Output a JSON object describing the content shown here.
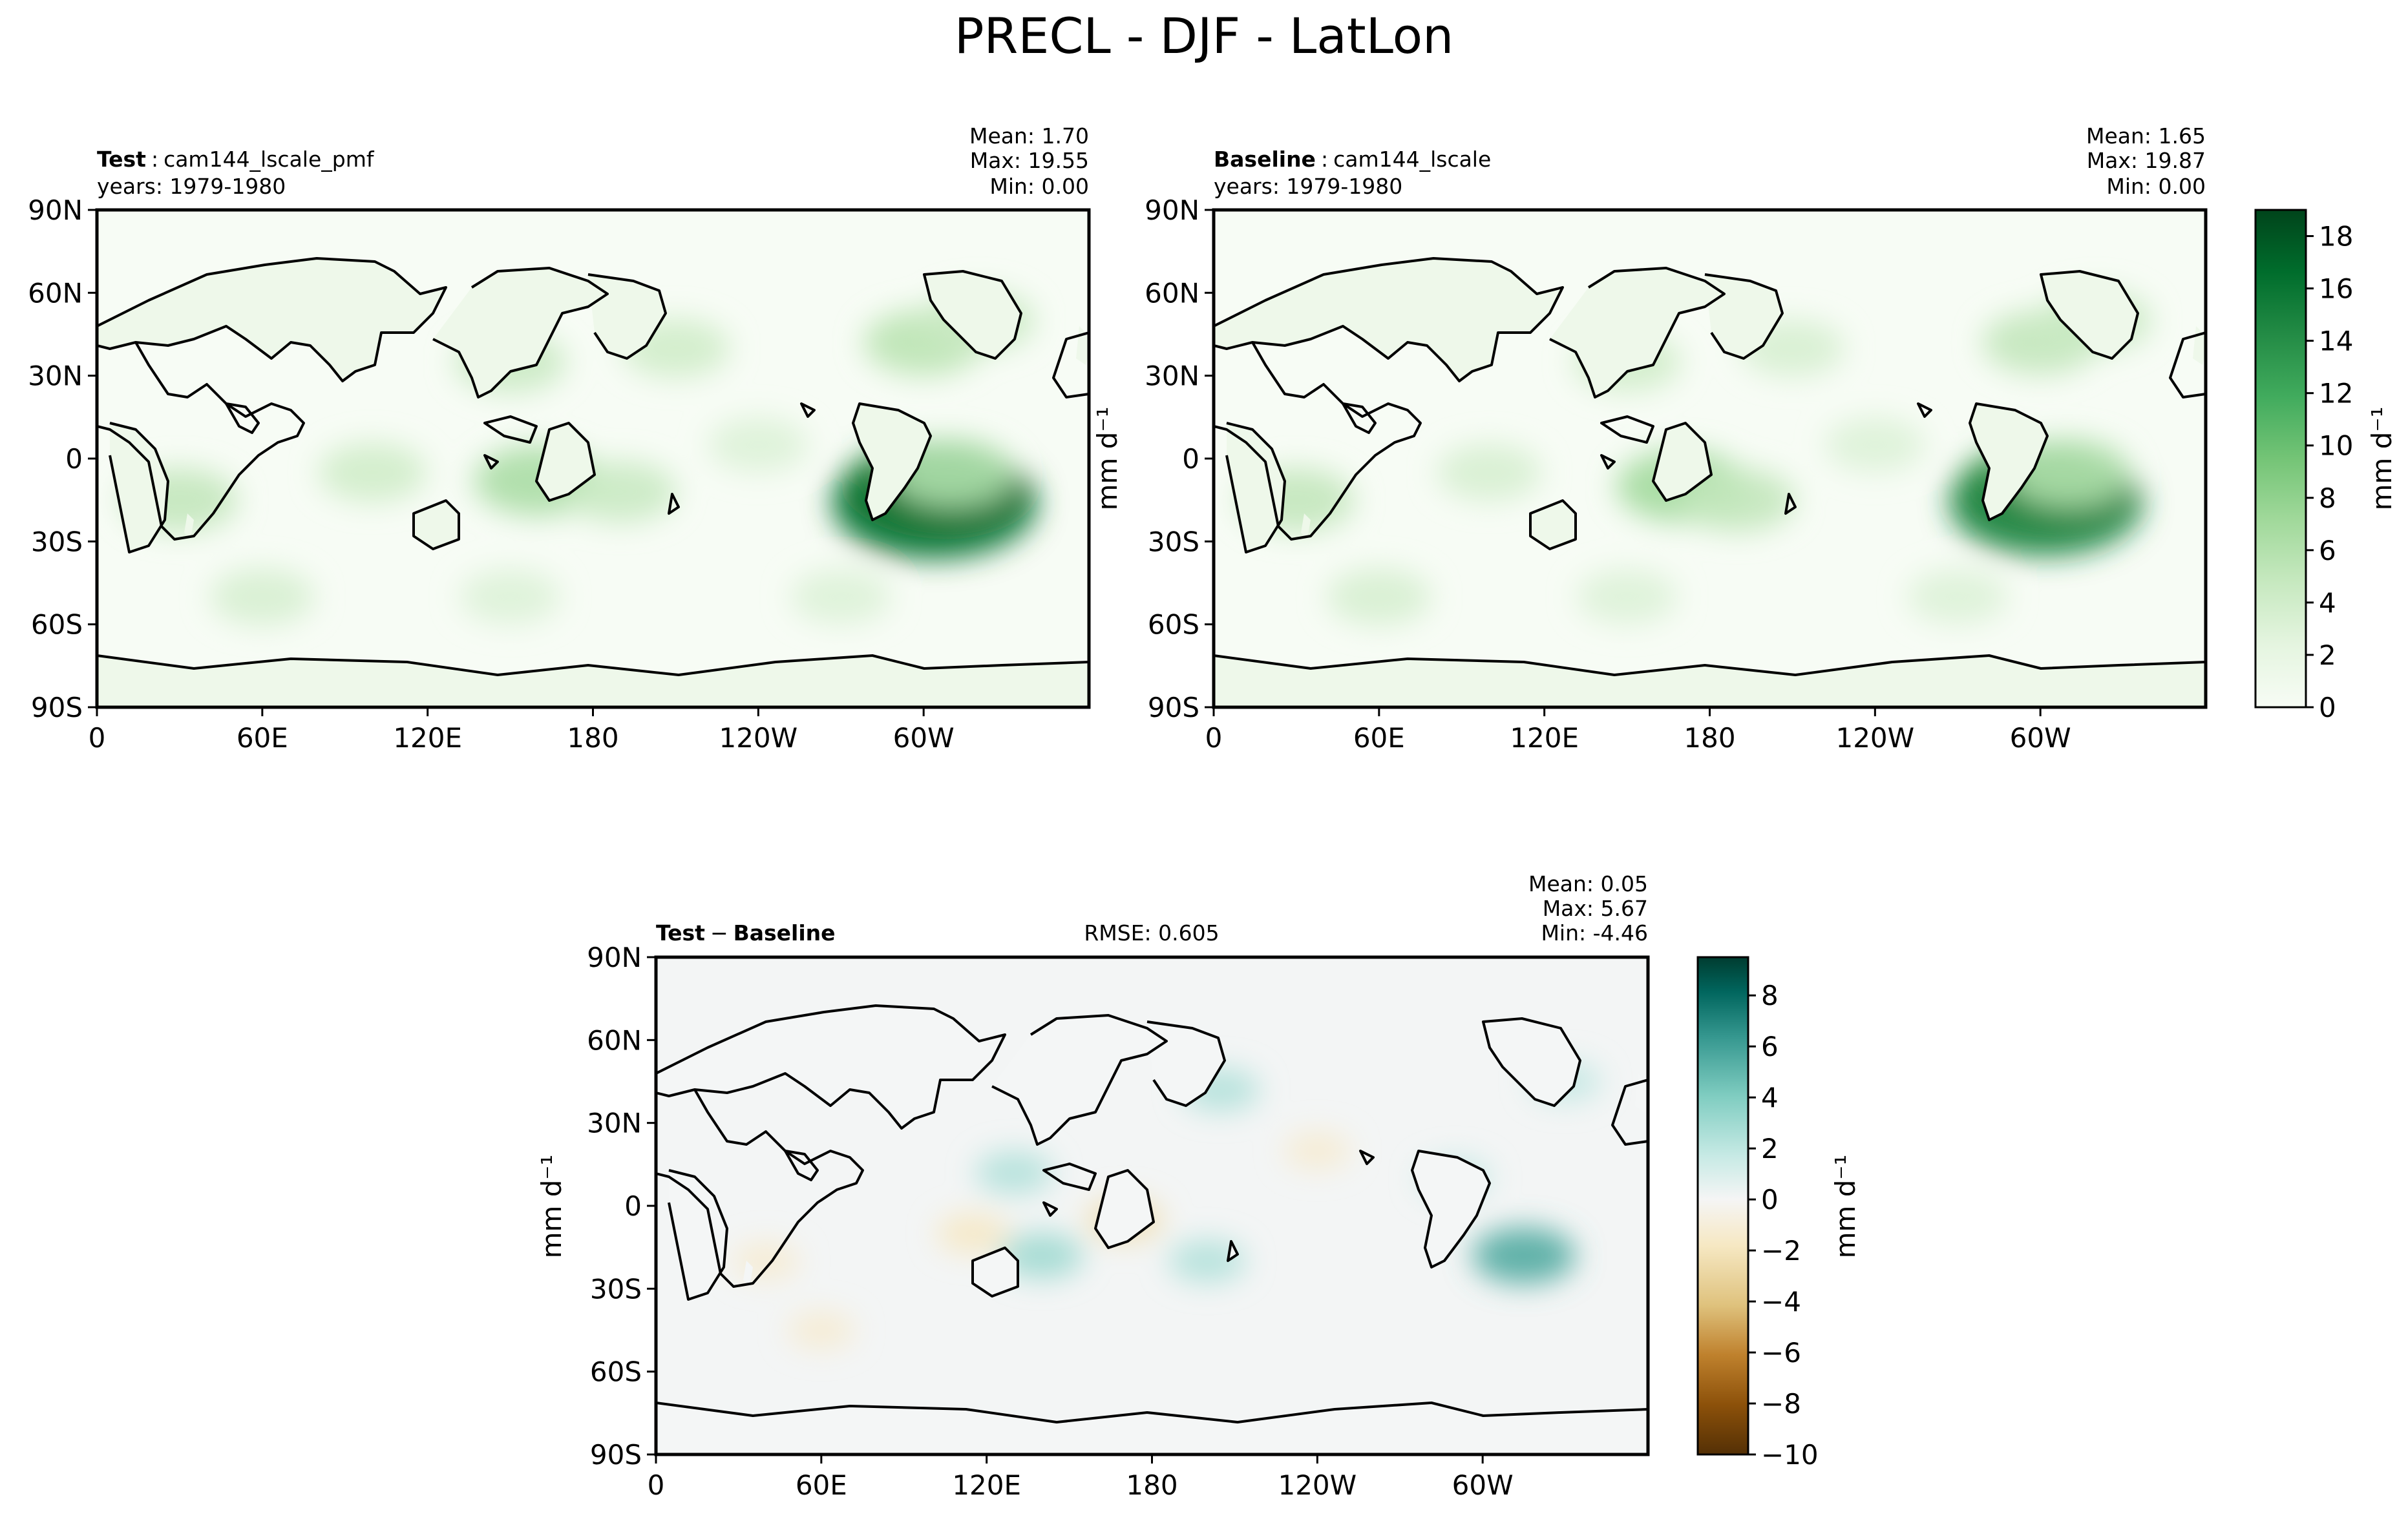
{
  "figure": {
    "title": "PRECL - DJF - LatLon"
  },
  "colors": {
    "precip_ramp": [
      "#f7fcf5",
      "#e5f5e0",
      "#c7e9c0",
      "#a1d99b",
      "#74c476",
      "#41ab5d",
      "#238b45",
      "#006d2c",
      "#00441b"
    ],
    "diff_neg": [
      "#543005",
      "#8c510a",
      "#bf812d",
      "#dfc27d",
      "#f6e8c3",
      "#f5f5f5"
    ],
    "diff_pos": [
      "#f5f5f5",
      "#c7eae5",
      "#80cdc1",
      "#35978f",
      "#01665e",
      "#003c30"
    ],
    "coastline": "#000000"
  },
  "panels": {
    "test": {
      "label": "Test",
      "sep": ":",
      "name": "cam144_lscale_pmf",
      "years": "years: 1979-1980",
      "mean": "Mean:  1.70",
      "max": "Max: 19.55",
      "min": "Min:  0.00"
    },
    "baseline": {
      "label": "Baseline",
      "sep": ":",
      "name": "cam144_lscale",
      "years": "years: 1979-1980",
      "mean": "Mean:  1.65",
      "max": "Max: 19.87",
      "min": "Min:  0.00"
    },
    "diff": {
      "label_a": "Test",
      "minus": "−",
      "label_b": "Baseline",
      "rmse": "RMSE: 0.605",
      "mean": "Mean:  0.05",
      "max": "Max:  5.67",
      "min": "Min: -4.46"
    }
  },
  "units": {
    "ylabel": "mm d⁻¹",
    "cbar_label": "mm d⁻¹"
  },
  "chart_data": [
    {
      "type": "heatmap",
      "panel": "test",
      "title": "Test : cam144_lscale_pmf",
      "x_ticks": [
        "0",
        "60E",
        "120E",
        "180",
        "120W",
        "60W"
      ],
      "y_ticks": [
        "90N",
        "60N",
        "30N",
        "0",
        "30S",
        "60S",
        "90S"
      ],
      "xlim": [
        0,
        360
      ],
      "ylim": [
        -90,
        90
      ],
      "stats": {
        "mean": 1.7,
        "max": 19.55,
        "min": 0.0
      },
      "regions": [
        {
          "lon": 150,
          "lat": 35,
          "value": 4.5
        },
        {
          "lon": 210,
          "lat": 40,
          "value": 4.0
        },
        {
          "lon": 300,
          "lat": 42,
          "value": 5.5
        },
        {
          "lon": 320,
          "lat": 50,
          "value": 4.5
        },
        {
          "lon": 160,
          "lat": -8,
          "value": 6.5
        },
        {
          "lon": 190,
          "lat": -12,
          "value": 4.5
        },
        {
          "lon": 300,
          "lat": -10,
          "value": 11.0
        },
        {
          "lon": 304,
          "lat": -16,
          "value": 16.5
        },
        {
          "lon": 310,
          "lat": -5,
          "value": 6.0
        },
        {
          "lon": 30,
          "lat": -15,
          "value": 5.0
        },
        {
          "lon": 100,
          "lat": -5,
          "value": 4.0
        },
        {
          "lon": 240,
          "lat": 5,
          "value": 3.0
        },
        {
          "lon": 60,
          "lat": -50,
          "value": 3.5
        },
        {
          "lon": 150,
          "lat": -50,
          "value": 3.0
        },
        {
          "lon": 270,
          "lat": -50,
          "value": 3.0
        }
      ]
    },
    {
      "type": "heatmap",
      "panel": "baseline",
      "title": "Baseline : cam144_lscale",
      "x_ticks": [
        "0",
        "60E",
        "120E",
        "180",
        "120W",
        "60W"
      ],
      "y_ticks": [
        "90N",
        "60N",
        "30N",
        "0",
        "30S",
        "60S",
        "90S"
      ],
      "xlim": [
        0,
        360
      ],
      "ylim": [
        -90,
        90
      ],
      "stats": {
        "mean": 1.65,
        "max": 19.87,
        "min": 0.0
      },
      "colorbar": {
        "ticks": [
          0,
          2,
          4,
          6,
          8,
          10,
          12,
          14,
          16,
          18
        ],
        "range": [
          0,
          19
        ],
        "label": "mm d⁻¹"
      },
      "regions": [
        {
          "lon": 150,
          "lat": 35,
          "value": 4.0
        },
        {
          "lon": 210,
          "lat": 40,
          "value": 3.5
        },
        {
          "lon": 300,
          "lat": 42,
          "value": 5.0
        },
        {
          "lon": 320,
          "lat": 50,
          "value": 4.5
        },
        {
          "lon": 170,
          "lat": -10,
          "value": 7.0
        },
        {
          "lon": 190,
          "lat": -15,
          "value": 5.0
        },
        {
          "lon": 298,
          "lat": -10,
          "value": 10.0
        },
        {
          "lon": 302,
          "lat": -16,
          "value": 15.0
        },
        {
          "lon": 310,
          "lat": -5,
          "value": 6.0
        },
        {
          "lon": 30,
          "lat": -15,
          "value": 5.0
        },
        {
          "lon": 100,
          "lat": -5,
          "value": 3.5
        },
        {
          "lon": 240,
          "lat": 5,
          "value": 3.0
        },
        {
          "lon": 60,
          "lat": -50,
          "value": 3.5
        },
        {
          "lon": 150,
          "lat": -50,
          "value": 3.0
        },
        {
          "lon": 270,
          "lat": -50,
          "value": 3.0
        }
      ]
    },
    {
      "type": "heatmap",
      "panel": "diff",
      "title": "Test − Baseline",
      "x_ticks": [
        "0",
        "60E",
        "120E",
        "180",
        "120W",
        "60W"
      ],
      "y_ticks": [
        "90N",
        "60N",
        "30N",
        "0",
        "30S",
        "60S",
        "90S"
      ],
      "xlim": [
        0,
        360
      ],
      "ylim": [
        -90,
        90
      ],
      "stats": {
        "mean": 0.05,
        "max": 5.67,
        "min": -4.46,
        "rmse": 0.605
      },
      "colorbar": {
        "ticks": [
          -10,
          -8,
          -6,
          -4,
          -2,
          0,
          2,
          4,
          6,
          8
        ],
        "range": [
          -10,
          9.5
        ],
        "label": "mm d⁻¹"
      },
      "regions": [
        {
          "lon": 315,
          "lat": -18,
          "value": 5.0
        },
        {
          "lon": 140,
          "lat": -18,
          "value": 3.0
        },
        {
          "lon": 205,
          "lat": 42,
          "value": 2.5
        },
        {
          "lon": 130,
          "lat": 12,
          "value": 2.5
        },
        {
          "lon": 200,
          "lat": -20,
          "value": 2.5
        },
        {
          "lon": 170,
          "lat": -5,
          "value": -2.5
        },
        {
          "lon": 115,
          "lat": -10,
          "value": -2.0
        },
        {
          "lon": 60,
          "lat": -45,
          "value": -1.5
        },
        {
          "lon": 290,
          "lat": 10,
          "value": 2.0
        },
        {
          "lon": 330,
          "lat": 45,
          "value": 2.0
        },
        {
          "lon": 240,
          "lat": 20,
          "value": -1.5
        },
        {
          "lon": 40,
          "lat": -20,
          "value": -1.5
        }
      ]
    }
  ]
}
